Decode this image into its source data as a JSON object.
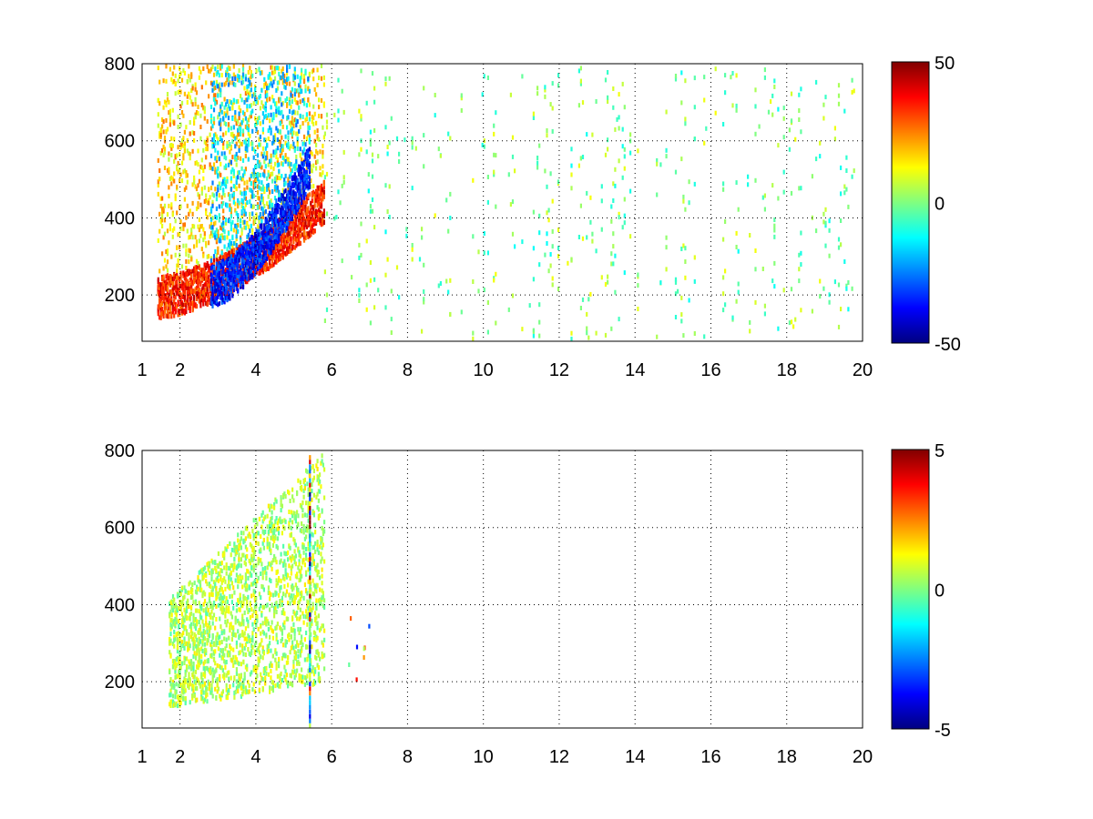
{
  "chart_data": [
    {
      "type": "heatmap",
      "title": "",
      "xlabel": "",
      "ylabel": "",
      "xlim": [
        1,
        20
      ],
      "ylim": [
        80,
        800
      ],
      "x_ticks": [
        "1",
        "2",
        "4",
        "6",
        "8",
        "10",
        "12",
        "14",
        "16",
        "18",
        "20"
      ],
      "x_tick_values": [
        1,
        2,
        4,
        6,
        8,
        10,
        12,
        14,
        16,
        18,
        20
      ],
      "y_ticks": [
        "200",
        "400",
        "600",
        "800"
      ],
      "y_tick_values": [
        200,
        400,
        600,
        800
      ],
      "grid": true,
      "colormap": "jet",
      "colorbar": {
        "min": -50,
        "max": 50,
        "tick_labels": [
          "50",
          "0",
          "-50"
        ],
        "tick_values": [
          50,
          0,
          -50
        ]
      },
      "features": [
        {
          "kind": "dense_band",
          "x": [
            1.4,
            5.8
          ],
          "y_at_xmin": 200,
          "y_at_xmax": 450,
          "value": 45
        },
        {
          "kind": "dense_band",
          "x": [
            2.8,
            5.4
          ],
          "y_at_xmin": 230,
          "y_at_xmax": 540,
          "value": -45
        },
        {
          "kind": "sparse_columns",
          "x": [
            5.8,
            20
          ],
          "y": [
            80,
            800
          ],
          "value_range": [
            -12,
            12
          ]
        }
      ]
    },
    {
      "type": "heatmap",
      "title": "",
      "xlabel": "",
      "ylabel": "",
      "xlim": [
        1,
        20
      ],
      "ylim": [
        80,
        800
      ],
      "x_ticks": [
        "1",
        "2",
        "4",
        "6",
        "8",
        "10",
        "12",
        "14",
        "16",
        "18",
        "20"
      ],
      "x_tick_values": [
        1,
        2,
        4,
        6,
        8,
        10,
        12,
        14,
        16,
        18,
        20
      ],
      "y_ticks": [
        "200",
        "400",
        "600",
        "800"
      ],
      "y_tick_values": [
        200,
        400,
        600,
        800
      ],
      "grid": true,
      "colormap": "jet",
      "colorbar": {
        "min": -5,
        "max": 5,
        "tick_labels": [
          "5",
          "0",
          "-5"
        ],
        "tick_values": [
          5,
          0,
          -5
        ]
      },
      "features": [
        {
          "kind": "dense_region",
          "x": [
            1.7,
            5.8
          ],
          "y": [
            140,
            800
          ],
          "value_range": [
            -0.5,
            1.5
          ]
        },
        {
          "kind": "spike_column",
          "x": 5.4,
          "y": [
            80,
            790
          ],
          "value_range": [
            -5,
            5
          ]
        },
        {
          "kind": "isolated_points",
          "x": [
            6.4,
            7.0
          ],
          "y": [
            180,
            400
          ]
        }
      ]
    }
  ]
}
